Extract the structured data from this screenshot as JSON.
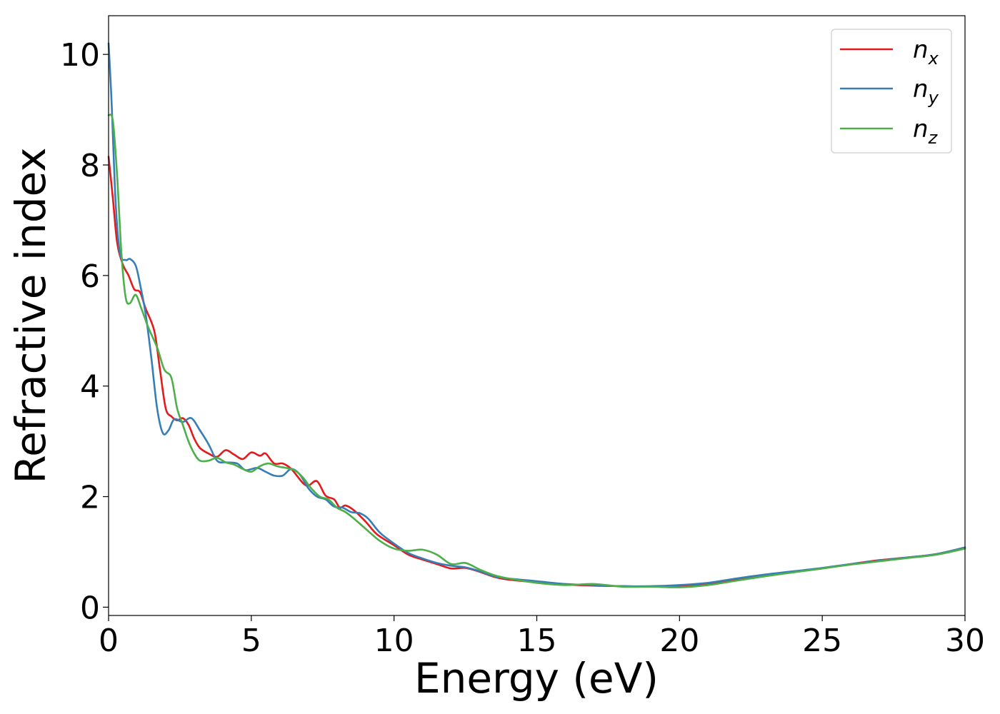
{
  "chart_data": {
    "type": "line",
    "xlabel": "Energy (eV)",
    "ylabel": "Refractive index",
    "xlim": [
      0,
      30
    ],
    "ylim": [
      -0.15,
      10.7
    ],
    "xticks": [
      "0",
      "5",
      "10",
      "15",
      "20",
      "25",
      "30"
    ],
    "yticks": [
      "0",
      "2",
      "4",
      "6",
      "8",
      "10"
    ],
    "grid": false,
    "legend_position": "top-right",
    "series": [
      {
        "name": "n",
        "sub": "x",
        "color": "#e41a1c",
        "points": [
          [
            0,
            8.15
          ],
          [
            0.15,
            7.4
          ],
          [
            0.3,
            6.6
          ],
          [
            0.5,
            6.2
          ],
          [
            0.7,
            6.0
          ],
          [
            0.9,
            5.75
          ],
          [
            1.1,
            5.7
          ],
          [
            1.3,
            5.4
          ],
          [
            1.6,
            5.0
          ],
          [
            1.8,
            4.3
          ],
          [
            2.0,
            3.6
          ],
          [
            2.2,
            3.45
          ],
          [
            2.4,
            3.38
          ],
          [
            2.6,
            3.42
          ],
          [
            2.8,
            3.3
          ],
          [
            3.0,
            3.05
          ],
          [
            3.2,
            2.88
          ],
          [
            3.5,
            2.78
          ],
          [
            3.8,
            2.72
          ],
          [
            4.1,
            2.84
          ],
          [
            4.4,
            2.76
          ],
          [
            4.7,
            2.68
          ],
          [
            5.0,
            2.8
          ],
          [
            5.3,
            2.74
          ],
          [
            5.5,
            2.78
          ],
          [
            5.8,
            2.6
          ],
          [
            6.1,
            2.6
          ],
          [
            6.4,
            2.5
          ],
          [
            6.8,
            2.25
          ],
          [
            7.0,
            2.2
          ],
          [
            7.3,
            2.28
          ],
          [
            7.6,
            2.02
          ],
          [
            7.9,
            1.95
          ],
          [
            8.1,
            1.8
          ],
          [
            8.3,
            1.84
          ],
          [
            8.6,
            1.75
          ],
          [
            9.0,
            1.55
          ],
          [
            9.4,
            1.32
          ],
          [
            10.0,
            1.12
          ],
          [
            10.5,
            0.95
          ],
          [
            11.0,
            0.86
          ],
          [
            11.5,
            0.78
          ],
          [
            12.0,
            0.7
          ],
          [
            12.5,
            0.71
          ],
          [
            13.0,
            0.64
          ],
          [
            13.5,
            0.55
          ],
          [
            14.0,
            0.5
          ],
          [
            15.0,
            0.45
          ],
          [
            16.0,
            0.41
          ],
          [
            17.0,
            0.39
          ],
          [
            18.0,
            0.38
          ],
          [
            19.0,
            0.37
          ],
          [
            20.0,
            0.38
          ],
          [
            21.0,
            0.42
          ],
          [
            22.0,
            0.5
          ],
          [
            23.0,
            0.58
          ],
          [
            24.0,
            0.64
          ],
          [
            25.0,
            0.7
          ],
          [
            26.0,
            0.78
          ],
          [
            27.0,
            0.85
          ],
          [
            28.0,
            0.9
          ],
          [
            29.0,
            0.96
          ],
          [
            30.0,
            1.08
          ]
        ]
      },
      {
        "name": "n",
        "sub": "y",
        "color": "#377eb8",
        "points": [
          [
            0,
            10.2
          ],
          [
            0.1,
            9.2
          ],
          [
            0.25,
            7.3
          ],
          [
            0.4,
            6.4
          ],
          [
            0.6,
            6.28
          ],
          [
            0.75,
            6.3
          ],
          [
            0.95,
            6.18
          ],
          [
            1.1,
            5.85
          ],
          [
            1.3,
            5.3
          ],
          [
            1.5,
            4.5
          ],
          [
            1.7,
            3.6
          ],
          [
            1.9,
            3.15
          ],
          [
            2.1,
            3.2
          ],
          [
            2.3,
            3.4
          ],
          [
            2.6,
            3.35
          ],
          [
            2.9,
            3.42
          ],
          [
            3.2,
            3.2
          ],
          [
            3.5,
            2.95
          ],
          [
            3.8,
            2.65
          ],
          [
            4.1,
            2.62
          ],
          [
            4.5,
            2.6
          ],
          [
            4.8,
            2.48
          ],
          [
            5.2,
            2.52
          ],
          [
            5.5,
            2.45
          ],
          [
            5.8,
            2.38
          ],
          [
            6.1,
            2.38
          ],
          [
            6.4,
            2.5
          ],
          [
            6.7,
            2.4
          ],
          [
            7.0,
            2.15
          ],
          [
            7.3,
            2.0
          ],
          [
            7.6,
            1.95
          ],
          [
            7.9,
            1.82
          ],
          [
            8.2,
            1.8
          ],
          [
            8.5,
            1.72
          ],
          [
            8.8,
            1.7
          ],
          [
            9.1,
            1.6
          ],
          [
            9.5,
            1.35
          ],
          [
            10.0,
            1.15
          ],
          [
            10.5,
            0.98
          ],
          [
            11.0,
            0.88
          ],
          [
            11.5,
            0.8
          ],
          [
            12.0,
            0.75
          ],
          [
            12.5,
            0.72
          ],
          [
            13.0,
            0.65
          ],
          [
            13.5,
            0.56
          ],
          [
            14.0,
            0.52
          ],
          [
            15.0,
            0.47
          ],
          [
            16.0,
            0.42
          ],
          [
            17.0,
            0.4
          ],
          [
            18.0,
            0.38
          ],
          [
            19.0,
            0.38
          ],
          [
            20.0,
            0.4
          ],
          [
            21.0,
            0.44
          ],
          [
            22.0,
            0.52
          ],
          [
            23.0,
            0.59
          ],
          [
            24.0,
            0.65
          ],
          [
            25.0,
            0.71
          ],
          [
            26.0,
            0.78
          ],
          [
            27.0,
            0.84
          ],
          [
            28.0,
            0.9
          ],
          [
            29.0,
            0.96
          ],
          [
            30.0,
            1.08
          ]
        ]
      },
      {
        "name": "n",
        "sub": "z",
        "color": "#4daf4a",
        "points": [
          [
            0,
            8.9
          ],
          [
            0.15,
            8.8
          ],
          [
            0.3,
            7.8
          ],
          [
            0.45,
            6.4
          ],
          [
            0.6,
            5.6
          ],
          [
            0.75,
            5.5
          ],
          [
            0.95,
            5.65
          ],
          [
            1.15,
            5.4
          ],
          [
            1.4,
            5.05
          ],
          [
            1.7,
            4.7
          ],
          [
            1.95,
            4.3
          ],
          [
            2.2,
            4.15
          ],
          [
            2.4,
            3.6
          ],
          [
            2.6,
            3.3
          ],
          [
            2.8,
            3.0
          ],
          [
            3.0,
            2.78
          ],
          [
            3.2,
            2.65
          ],
          [
            3.5,
            2.65
          ],
          [
            3.8,
            2.7
          ],
          [
            4.1,
            2.62
          ],
          [
            4.4,
            2.58
          ],
          [
            4.7,
            2.5
          ],
          [
            5.0,
            2.45
          ],
          [
            5.3,
            2.55
          ],
          [
            5.6,
            2.6
          ],
          [
            5.9,
            2.55
          ],
          [
            6.2,
            2.52
          ],
          [
            6.5,
            2.48
          ],
          [
            6.8,
            2.35
          ],
          [
            7.1,
            2.15
          ],
          [
            7.4,
            2.0
          ],
          [
            7.7,
            1.95
          ],
          [
            8.0,
            1.8
          ],
          [
            8.3,
            1.72
          ],
          [
            8.6,
            1.6
          ],
          [
            9.0,
            1.42
          ],
          [
            9.5,
            1.2
          ],
          [
            10.0,
            1.06
          ],
          [
            10.5,
            1.02
          ],
          [
            11.0,
            1.04
          ],
          [
            11.5,
            0.95
          ],
          [
            12.0,
            0.78
          ],
          [
            12.5,
            0.8
          ],
          [
            13.0,
            0.68
          ],
          [
            13.5,
            0.58
          ],
          [
            14.0,
            0.52
          ],
          [
            15.0,
            0.44
          ],
          [
            16.0,
            0.4
          ],
          [
            17.0,
            0.42
          ],
          [
            18.0,
            0.37
          ],
          [
            19.0,
            0.37
          ],
          [
            20.0,
            0.36
          ],
          [
            21.0,
            0.4
          ],
          [
            22.0,
            0.48
          ],
          [
            23.0,
            0.56
          ],
          [
            24.0,
            0.63
          ],
          [
            25.0,
            0.7
          ],
          [
            26.0,
            0.77
          ],
          [
            27.0,
            0.83
          ],
          [
            28.0,
            0.89
          ],
          [
            29.0,
            0.95
          ],
          [
            30.0,
            1.06
          ]
        ]
      }
    ]
  }
}
